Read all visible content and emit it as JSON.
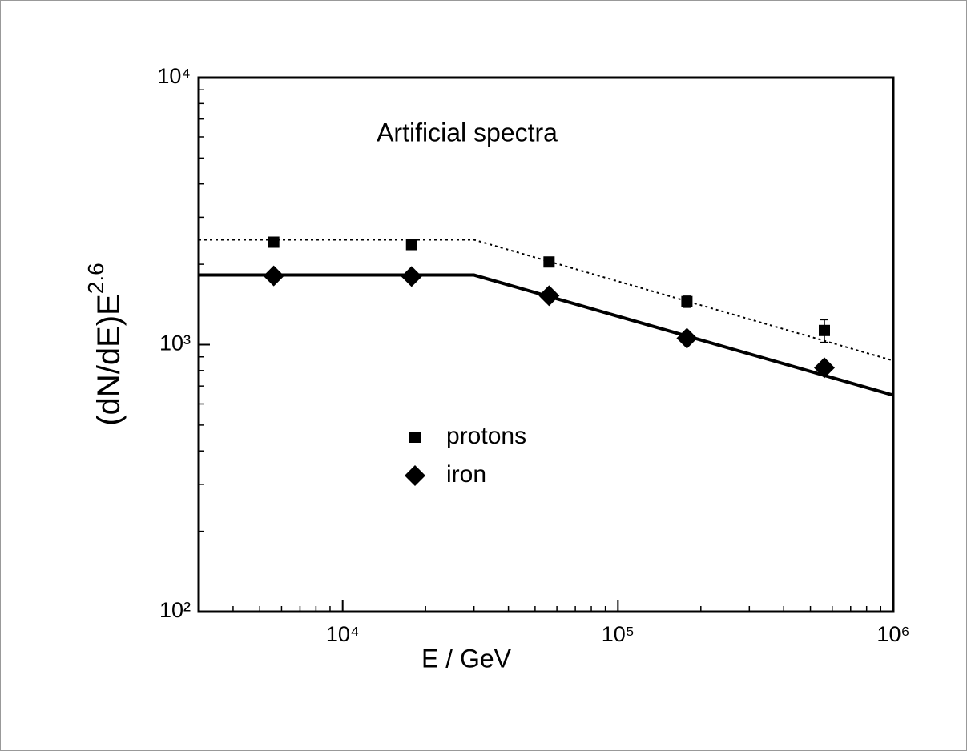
{
  "chart_data": {
    "type": "scatter",
    "annotation": "Artificial spectra",
    "x_label": "E / GeV",
    "y_label": {
      "base": "(dN/dE)E",
      "exponent": "2.6"
    },
    "log_x": true,
    "log_y": true,
    "xlim": [
      3000,
      1000000
    ],
    "ylim": [
      100,
      10000
    ],
    "xticks": [
      {
        "value": 10000,
        "label": "10⁴"
      },
      {
        "value": 100000,
        "label": "10⁵"
      },
      {
        "value": 1000000,
        "label": "10⁶"
      }
    ],
    "yticks": [
      {
        "value": 100,
        "label": "10²"
      },
      {
        "value": 1000,
        "label": "10³"
      },
      {
        "value": 10000,
        "label": "10⁴"
      }
    ],
    "x_minor_ticks": [
      4000,
      5000,
      6000,
      7000,
      8000,
      9000,
      20000,
      30000,
      40000,
      50000,
      60000,
      70000,
      80000,
      90000,
      200000,
      300000,
      400000,
      500000,
      600000,
      700000,
      800000,
      900000
    ],
    "y_minor_ticks": [
      200,
      300,
      400,
      500,
      600,
      700,
      800,
      900,
      2000,
      3000,
      4000,
      5000,
      6000,
      7000,
      8000,
      9000
    ],
    "series": [
      {
        "name": "protons",
        "marker": "square",
        "color": "#000000",
        "x": [
          5620,
          17800,
          56200,
          178000,
          562000
        ],
        "values": [
          2420,
          2370,
          2040,
          1450,
          1130
        ],
        "errors": [
          40,
          40,
          50,
          70,
          110
        ]
      },
      {
        "name": "iron",
        "marker": "diamond",
        "color": "#000000",
        "x": [
          5620,
          17800,
          56200,
          178000,
          562000
        ],
        "values": [
          1810,
          1800,
          1525,
          1057,
          819
        ]
      }
    ],
    "lines": [
      {
        "style": "dotted",
        "color": "#000000",
        "x": [
          3000,
          30000,
          1000000
        ],
        "values": [
          2470,
          2470,
          871
        ]
      },
      {
        "style": "solid",
        "color": "#000000",
        "x": [
          3000,
          30000,
          1000000
        ],
        "values": [
          1823,
          1823,
          647
        ]
      }
    ]
  }
}
